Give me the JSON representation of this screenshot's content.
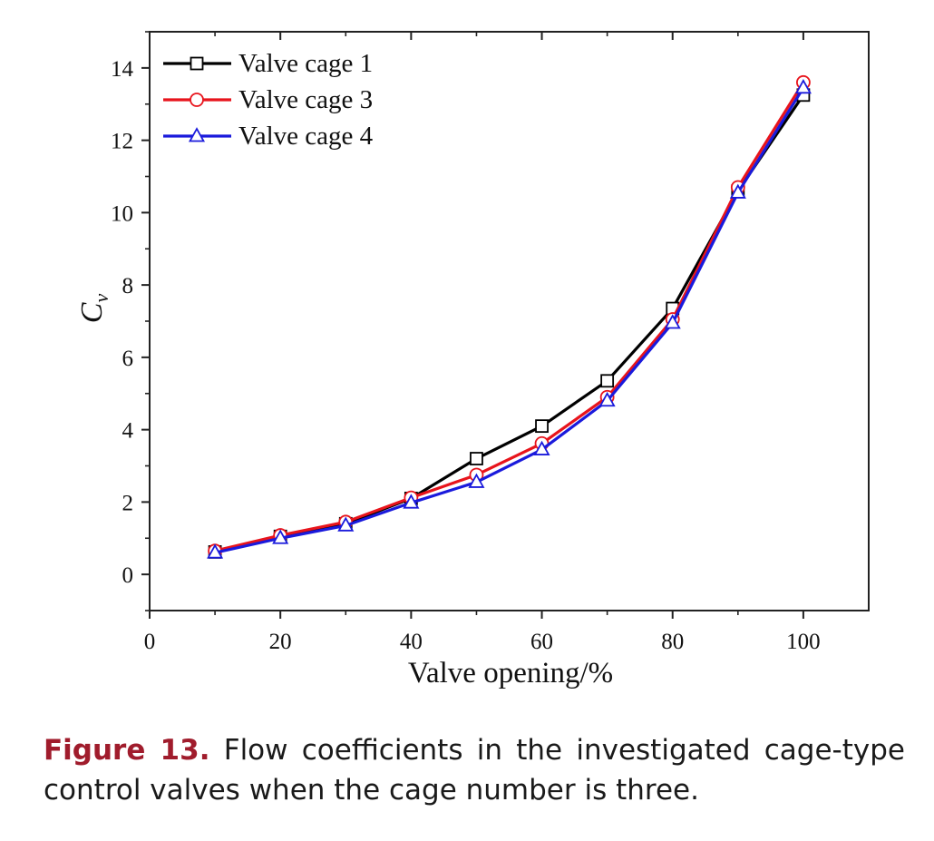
{
  "chart_data": {
    "type": "line",
    "xlabel": "Valve opening/%",
    "ylabel": "C",
    "ylabel_sub": "v",
    "xlim": [
      0,
      110
    ],
    "ylim": [
      -1,
      15
    ],
    "xticks": [
      0,
      20,
      40,
      60,
      80,
      100
    ],
    "yticks": [
      0,
      2,
      4,
      6,
      8,
      10,
      12,
      14
    ],
    "grid": false,
    "legend_position": "top-left",
    "x": [
      10,
      20,
      30,
      40,
      50,
      60,
      70,
      80,
      90,
      100
    ],
    "series": [
      {
        "name": "Valve cage 1",
        "color": "#000000",
        "marker": "square",
        "values": [
          0.62,
          1.05,
          1.4,
          2.1,
          3.2,
          4.1,
          5.35,
          7.35,
          10.6,
          13.25
        ]
      },
      {
        "name": "Valve cage 3",
        "color": "#e8141c",
        "marker": "circle",
        "values": [
          0.65,
          1.08,
          1.45,
          2.12,
          2.75,
          3.62,
          4.9,
          7.05,
          10.7,
          13.6
        ]
      },
      {
        "name": "Valve cage 4",
        "color": "#1a1adc",
        "marker": "triangle",
        "values": [
          0.6,
          1.0,
          1.35,
          1.98,
          2.55,
          3.45,
          4.8,
          6.95,
          10.55,
          13.45
        ]
      }
    ]
  },
  "caption": {
    "label": "Figure 13.",
    "text": "Flow coefficients in the investigated cage-type control valves when the cage number is three."
  }
}
